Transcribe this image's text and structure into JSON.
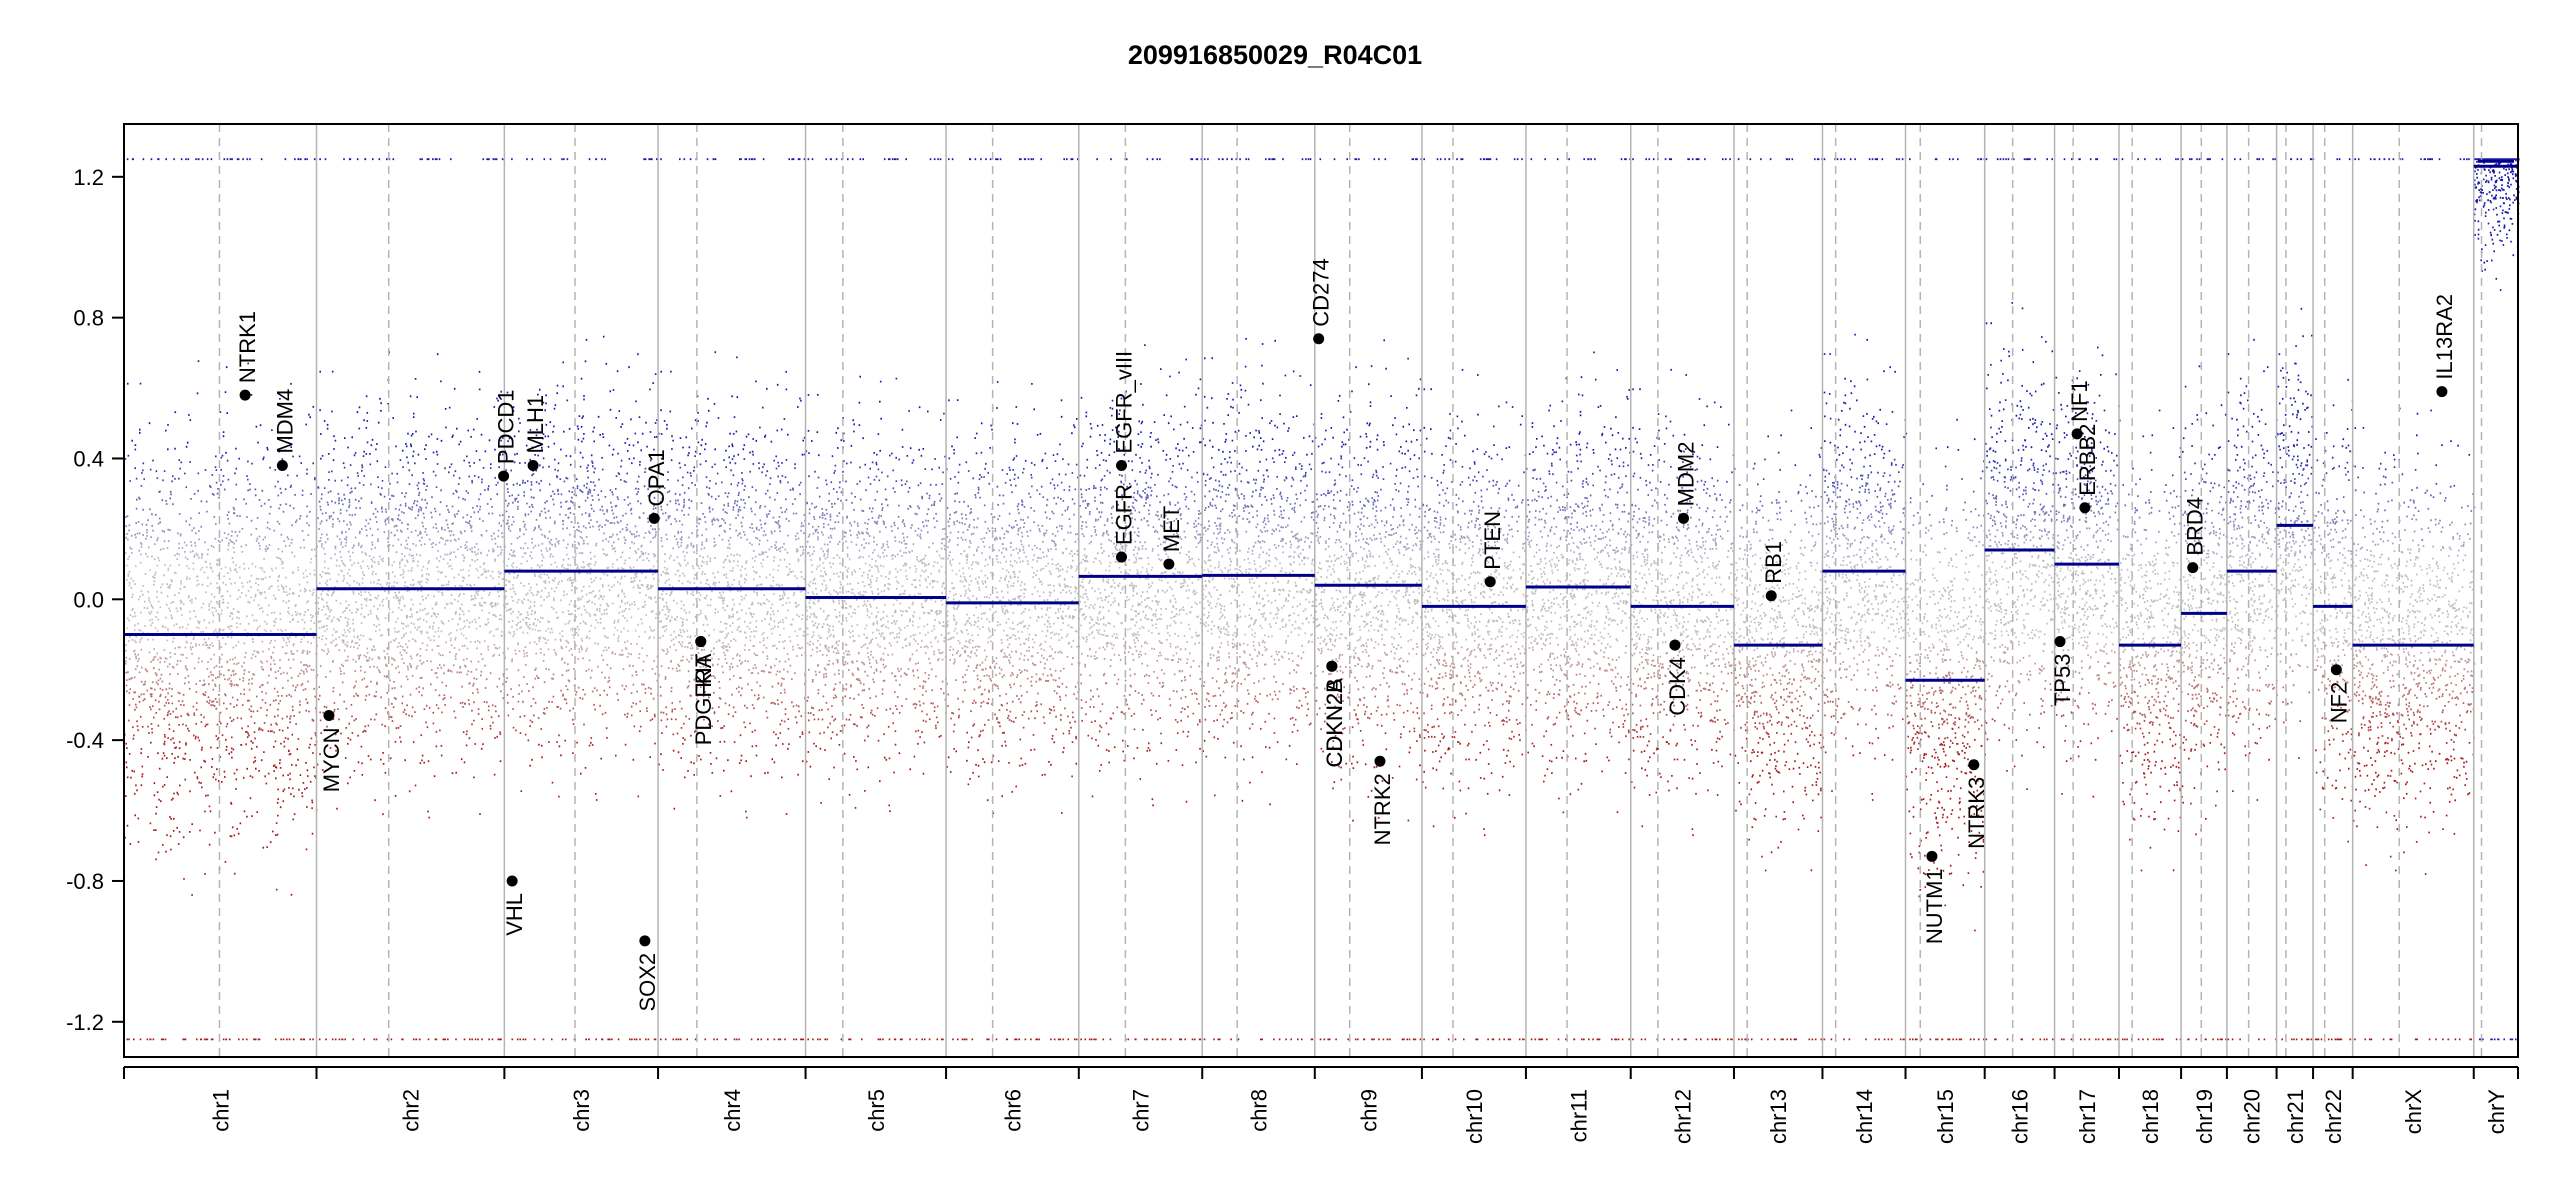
{
  "chart_data": {
    "type": "scatter",
    "title": "209916850029_R04C01",
    "xlabel": "",
    "ylabel": "",
    "ylim": [
      -1.3,
      1.35
    ],
    "y_ticks": [
      -1.2,
      -0.8,
      -0.4,
      0.0,
      0.4,
      0.8,
      1.2
    ],
    "y_tick_labels": [
      "-1.2",
      "-0.8",
      "-0.4",
      "0.0",
      "0.4",
      "0.8",
      "1.2"
    ],
    "point_colors": {
      "gain": "#1a1aa8",
      "loss": "#a81a1a",
      "neutral": "#bdbdbd"
    },
    "segment_color": "#00008b",
    "chromosomes": [
      {
        "name": "chr1",
        "size": 248,
        "centromere": 123,
        "segment": -0.1,
        "noise": 0.52
      },
      {
        "name": "chr2",
        "size": 242,
        "centromere": 93,
        "segment": 0.03,
        "noise": 0.45
      },
      {
        "name": "chr3",
        "size": 198,
        "centromere": 91,
        "segment": 0.08,
        "noise": 0.45
      },
      {
        "name": "chr4",
        "size": 190,
        "centromere": 50,
        "segment": 0.03,
        "noise": 0.45
      },
      {
        "name": "chr5",
        "size": 181,
        "centromere": 48,
        "segment": 0.005,
        "noise": 0.42
      },
      {
        "name": "chr6",
        "size": 171,
        "centromere": 60,
        "segment": -0.01,
        "noise": 0.42
      },
      {
        "name": "chr7",
        "size": 159,
        "centromere": 60,
        "segment": 0.065,
        "noise": 0.45
      },
      {
        "name": "chr8",
        "size": 145,
        "centromere": 45,
        "segment": 0.068,
        "noise": 0.45
      },
      {
        "name": "chr9",
        "size": 138,
        "centromere": 45,
        "segment": 0.04,
        "noise": 0.47
      },
      {
        "name": "chr10",
        "size": 134,
        "centromere": 40,
        "segment": -0.02,
        "noise": 0.45
      },
      {
        "name": "chr11",
        "size": 135,
        "centromere": 53,
        "segment": 0.035,
        "noise": 0.45
      },
      {
        "name": "chr12",
        "size": 133,
        "centromere": 35,
        "segment": -0.02,
        "noise": 0.45
      },
      {
        "name": "chr13",
        "size": 114,
        "centromere": 17,
        "segment": -0.13,
        "noise": 0.45
      },
      {
        "name": "chr14",
        "size": 107,
        "centromere": 17,
        "segment": 0.08,
        "noise": 0.45
      },
      {
        "name": "chr15",
        "size": 102,
        "centromere": 19,
        "segment": -0.23,
        "noise": 0.5
      },
      {
        "name": "chr16",
        "size": 90,
        "centromere": 36,
        "segment": 0.14,
        "noise": 0.47
      },
      {
        "name": "chr17",
        "size": 83,
        "centromere": 24,
        "segment": 0.1,
        "noise": 0.47
      },
      {
        "name": "chr18",
        "size": 80,
        "centromere": 17,
        "segment": -0.13,
        "noise": 0.45
      },
      {
        "name": "chr19",
        "size": 59,
        "centromere": 26,
        "segment": -0.04,
        "noise": 0.47
      },
      {
        "name": "chr20",
        "size": 64,
        "centromere": 28,
        "segment": 0.08,
        "noise": 0.45
      },
      {
        "name": "chr21",
        "size": 47,
        "centromere": 12,
        "segment": 0.21,
        "noise": 0.47
      },
      {
        "name": "chr22",
        "size": 51,
        "centromere": 15,
        "segment": -0.02,
        "noise": 0.47
      },
      {
        "name": "chrX",
        "size": 156,
        "centromere": 60,
        "segment": -0.13,
        "noise": 0.45
      },
      {
        "name": "chrY",
        "size": 57,
        "centromere": 10,
        "segment": 1.23,
        "noise": 0.25
      }
    ],
    "genes": [
      {
        "name": "NTRK1",
        "chrom": "chr1",
        "pos": 156,
        "value": 0.58
      },
      {
        "name": "MDM4",
        "chrom": "chr1",
        "pos": 204,
        "value": 0.38
      },
      {
        "name": "MYCN",
        "chrom": "chr2",
        "pos": 16,
        "value": -0.33
      },
      {
        "name": "PDCD1",
        "chrom": "chr2",
        "pos": 241,
        "value": 0.35
      },
      {
        "name": "VHL",
        "chrom": "chr3",
        "pos": 10,
        "value": -0.8
      },
      {
        "name": "MLH1",
        "chrom": "chr3",
        "pos": 37,
        "value": 0.38
      },
      {
        "name": "SOX2",
        "chrom": "chr3",
        "pos": 181,
        "value": -0.97
      },
      {
        "name": "OPA1",
        "chrom": "chr3",
        "pos": 193,
        "value": 0.23
      },
      {
        "name": "KIT",
        "chrom": "chr4",
        "pos": 55,
        "value": -0.12
      },
      {
        "name": "PDGFRA",
        "chrom": "chr4",
        "pos": 55,
        "value": -0.12
      },
      {
        "name": "EGFR_vIII",
        "chrom": "chr7",
        "pos": 55,
        "value": 0.38
      },
      {
        "name": "EGFR",
        "chrom": "chr7",
        "pos": 55,
        "value": 0.12
      },
      {
        "name": "MET",
        "chrom": "chr7",
        "pos": 116,
        "value": 0.1
      },
      {
        "name": "CD274",
        "chrom": "chr9",
        "pos": 5,
        "value": 0.74
      },
      {
        "name": "CDKN2A",
        "chrom": "chr9",
        "pos": 22,
        "value": -0.19
      },
      {
        "name": "CDKN2B",
        "chrom": "chr9",
        "pos": 22,
        "value": -0.19
      },
      {
        "name": "NTRK2",
        "chrom": "chr9",
        "pos": 84,
        "value": -0.46
      },
      {
        "name": "PTEN",
        "chrom": "chr10",
        "pos": 88,
        "value": 0.05
      },
      {
        "name": "CDK4",
        "chrom": "chr12",
        "pos": 57,
        "value": -0.13
      },
      {
        "name": "MDM2",
        "chrom": "chr12",
        "pos": 68,
        "value": 0.23
      },
      {
        "name": "RB1",
        "chrom": "chr13",
        "pos": 48,
        "value": 0.01
      },
      {
        "name": "NUTM1",
        "chrom": "chr15",
        "pos": 34,
        "value": -0.73
      },
      {
        "name": "NTRK3",
        "chrom": "chr15",
        "pos": 88,
        "value": -0.47
      },
      {
        "name": "TP53",
        "chrom": "chr17",
        "pos": 7,
        "value": -0.12
      },
      {
        "name": "NF1",
        "chrom": "chr17",
        "pos": 29,
        "value": 0.47
      },
      {
        "name": "ERBB2",
        "chrom": "chr17",
        "pos": 39,
        "value": 0.26
      },
      {
        "name": "BRD4",
        "chrom": "chr19",
        "pos": 15,
        "value": 0.09
      },
      {
        "name": "NF2",
        "chrom": "chr22",
        "pos": 30,
        "value": -0.2
      },
      {
        "name": "IL13RA2",
        "chrom": "chrX",
        "pos": 115,
        "value": 0.59
      }
    ]
  }
}
